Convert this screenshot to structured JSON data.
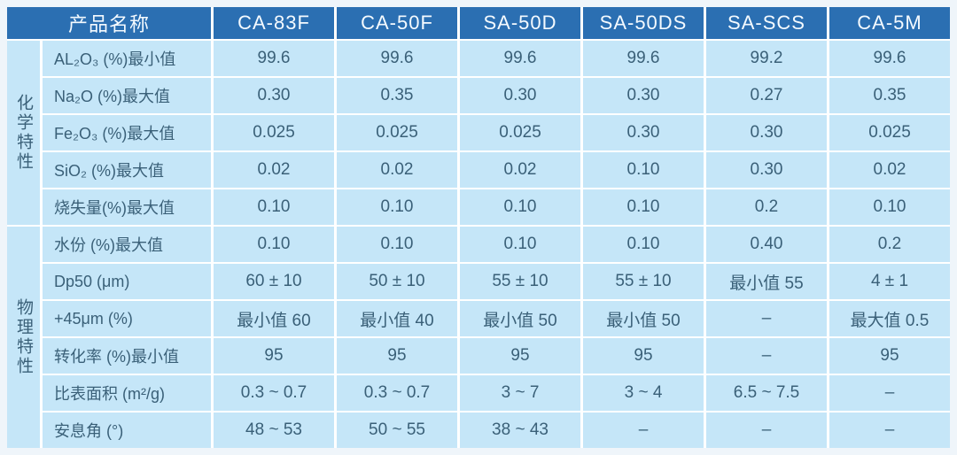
{
  "table": {
    "corner_header": "产品名称",
    "product_columns": [
      "CA-83F",
      "CA-50F",
      "SA-50D",
      "SA-50DS",
      "SA-SCS",
      "CA-5M"
    ],
    "row_groups": [
      {
        "group_label": "化学特性",
        "rows": [
          {
            "label": "AL₂O₃ (%)最小值",
            "values": [
              "99.6",
              "99.6",
              "99.6",
              "99.6",
              "99.2",
              "99.6"
            ]
          },
          {
            "label": "Na₂O (%)最大值",
            "values": [
              "0.30",
              "0.35",
              "0.30",
              "0.30",
              "0.27",
              "0.35"
            ]
          },
          {
            "label": "Fe₂O₃ (%)最大值",
            "values": [
              "0.025",
              "0.025",
              "0.025",
              "0.30",
              "0.30",
              "0.025"
            ]
          },
          {
            "label": "SiO₂ (%)最大值",
            "values": [
              "0.02",
              "0.02",
              "0.02",
              "0.10",
              "0.30",
              "0.02"
            ]
          },
          {
            "label": "烧失量(%)最大值",
            "values": [
              "0.10",
              "0.10",
              "0.10",
              "0.10",
              "0.2",
              "0.10"
            ]
          }
        ]
      },
      {
        "group_label": "物理特性",
        "rows": [
          {
            "label": "水份 (%)最大值",
            "values": [
              "0.10",
              "0.10",
              "0.10",
              "0.10",
              "0.40",
              "0.2"
            ]
          },
          {
            "label": "Dp50 (μm)",
            "values": [
              "60 ± 10",
              "50 ± 10",
              "55 ± 10",
              "55 ± 10",
              "最小值 55",
              "4 ± 1"
            ]
          },
          {
            "label": "+45μm (%)",
            "values": [
              "最小值 60",
              "最小值 40",
              "最小值 50",
              "最小值 50",
              "–",
              "最大值 0.5"
            ]
          },
          {
            "label": "转化率 (%)最小值",
            "values": [
              "95",
              "95",
              "95",
              "95",
              "–",
              "95"
            ]
          },
          {
            "label": "比表面积 (m²/g)",
            "values": [
              "0.3 ~ 0.7",
              "0.3 ~ 0.7",
              "3 ~ 7",
              "3 ~ 4",
              "6.5 ~ 7.5",
              "–"
            ]
          },
          {
            "label": "安息角 (°)",
            "values": [
              "48 ~ 53",
              "50 ~ 55",
              "38 ~ 43",
              "–",
              "–",
              "–"
            ]
          }
        ]
      }
    ]
  },
  "colors": {
    "header_bg": "#2B6FB2",
    "cell_bg": "#C5E6F8",
    "grid_line": "#FFFFFF",
    "cell_text": "#3A6078",
    "header_text": "#F4FAFF",
    "page_bg": "#EFF5FA"
  }
}
